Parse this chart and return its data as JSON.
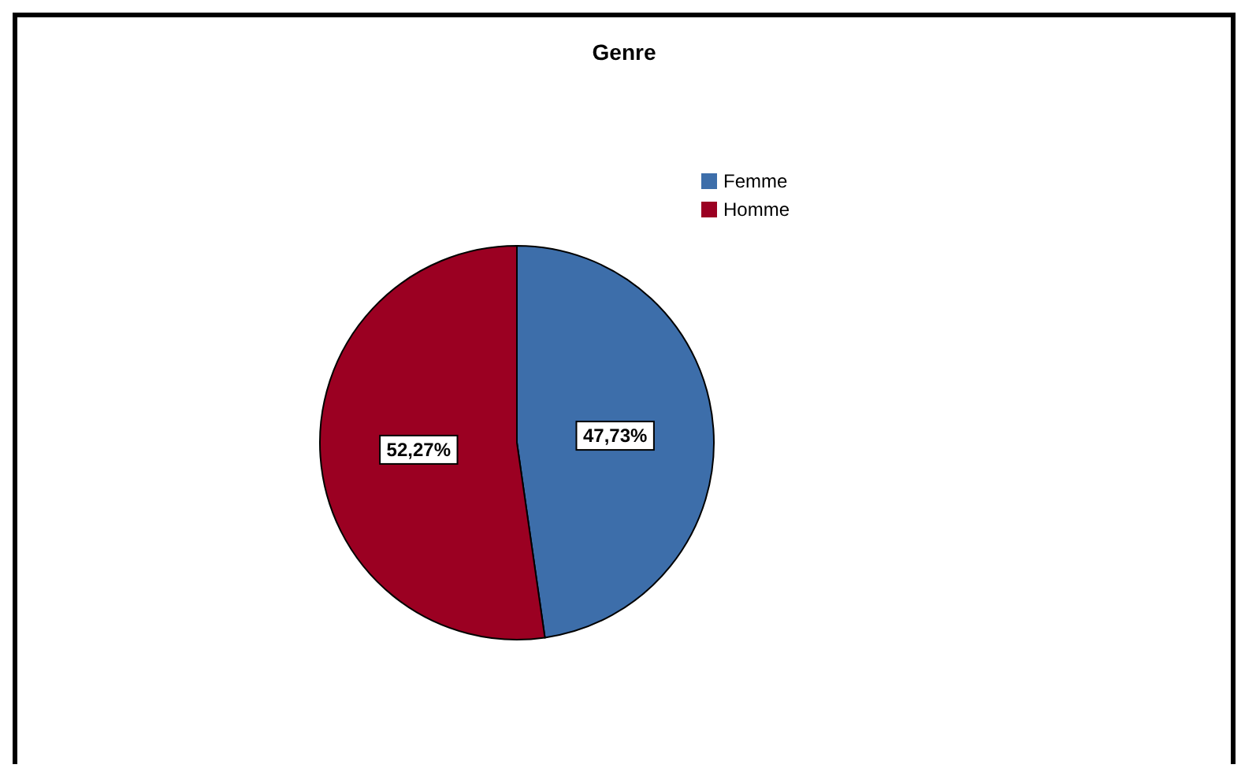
{
  "chart_data": {
    "type": "pie",
    "title": "Genre",
    "categories": [
      "Femme",
      "Homme"
    ],
    "values": [
      47.73,
      52.27
    ],
    "colors": [
      "#3d6eaa",
      "#9b0022"
    ],
    "value_labels": [
      "47,73%",
      "52,27%"
    ],
    "legend": "top right"
  }
}
